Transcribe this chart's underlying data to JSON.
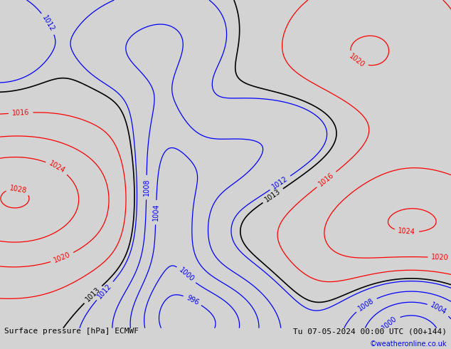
{
  "title_left": "Surface pressure [hPa] ECMWF",
  "title_right": "Tu 07-05-2024 00:00 UTC (00+144)",
  "credit": "©weatheronline.co.uk",
  "bg_color": "#d3d3d3",
  "land_color": "#b5e08c",
  "border_color": "#888888",
  "figsize": [
    6.34,
    4.9
  ],
  "dpi": 100,
  "extent": [
    -105,
    -14,
    -58,
    16
  ],
  "isobar_levels_blue": [
    996,
    1000,
    1004,
    1008,
    1012
  ],
  "isobar_levels_black": [
    1013
  ],
  "isobar_levels_red": [
    1016,
    1020,
    1024,
    1028
  ],
  "lw_blue": 0.9,
  "lw_black": 1.2,
  "lw_red": 0.9,
  "label_fontsize": 7
}
